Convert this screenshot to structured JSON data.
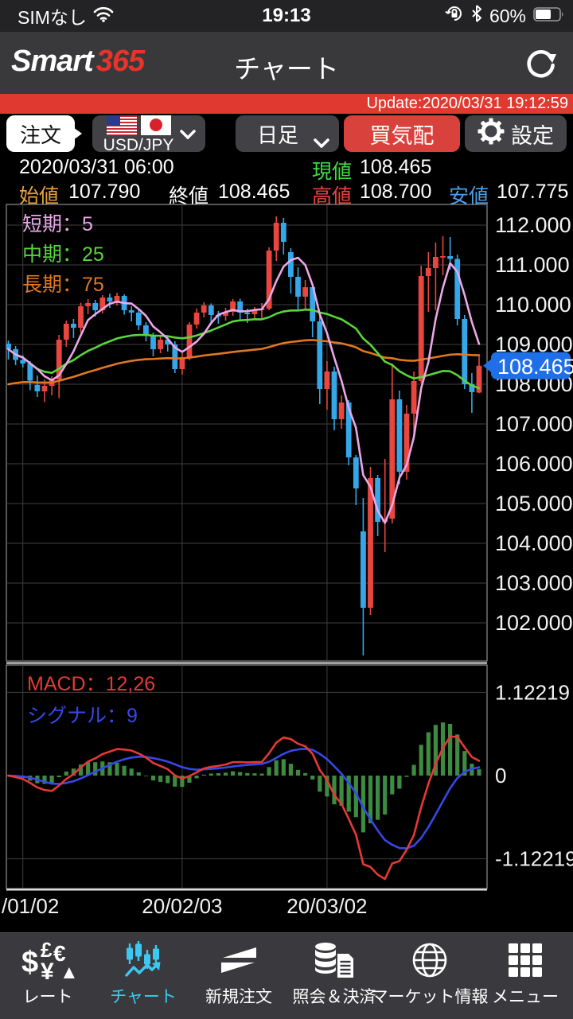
{
  "status_bar": {
    "carrier": "SIMなし",
    "time": "19:13",
    "battery_pct": "60%"
  },
  "header": {
    "logo_smart": "Smart",
    "logo_365": "365",
    "title": "チャート"
  },
  "update_bar": {
    "text": "Update:2020/03/31 19:12:59"
  },
  "toolbar": {
    "order_label": "注文",
    "pair_label": "USD/JPY",
    "timeframe_label": "日足",
    "bid_label": "買気配",
    "settings_label": "設定"
  },
  "info": {
    "datetime": "2020/03/31 06:00",
    "current_label": "現値",
    "current": "108.465",
    "open_label": "始値",
    "open": "107.790",
    "close_label": "終値",
    "close": "108.465",
    "high_label": "高値",
    "high": "108.700",
    "low_label": "安値",
    "low": "107.775"
  },
  "legend": {
    "short": "短期：5",
    "mid": "中期：25",
    "long": "長期：75"
  },
  "macd_legend": {
    "macd": "MACD：12,26",
    "signal": "シグナル：9"
  },
  "colors": {
    "accent_red": "#e03a30",
    "candle_up": "#e8463e",
    "candle_down": "#35a7e8",
    "ma_short": "#eba7e8",
    "ma_mid": "#5ad53a",
    "ma_long": "#e07820",
    "macd_line": "#e53935",
    "signal_line": "#3648e8",
    "hist_green": "#3d8b40",
    "price_tag_bg": "#1f6fe8",
    "grid": "#3f3f3f",
    "nav_active": "#3cc8f0",
    "current_green": "#3ddc45",
    "open_orange": "#e8a23c",
    "high_red": "#e8453c",
    "low_blue": "#4aa0e8"
  },
  "chart_data": {
    "type": "candlestick+macd",
    "title": "USD/JPY 日足 (daily candles with MA 5/25/75 and MACD 12,26,9)",
    "y_ticks": [
      112,
      111,
      110,
      109,
      108,
      107,
      106,
      105,
      104,
      103,
      102
    ],
    "y_tick_labels": [
      "112.000",
      "111.000",
      "110.000",
      "109.000",
      "108.000",
      "107.000",
      "106.000",
      "105.000",
      "104.000",
      "103.000",
      "102.000"
    ],
    "current_price": 108.465,
    "current_price_label": "108.465",
    "x_labels": [
      {
        "text": "/01/02",
        "index": 2,
        "anchor": "start"
      },
      {
        "text": "20/02/03",
        "index": 24,
        "anchor": "middle"
      },
      {
        "text": "20/03/02",
        "index": 44,
        "anchor": "middle"
      }
    ],
    "ma_periods": {
      "short": 5,
      "mid": 25,
      "long": 75
    },
    "macd_params": {
      "fast": 12,
      "slow": 26,
      "signal": 9
    },
    "macd_axis_labels": {
      "top": "1.12219",
      "zero": "0",
      "bottom": "-1.12219",
      "top_value": 1.12219,
      "bottom_value": -1.12219
    },
    "candles_ohlc": [
      [
        109.02,
        109.1,
        108.62,
        108.88
      ],
      [
        108.88,
        108.96,
        108.48,
        108.61
      ],
      [
        108.61,
        108.73,
        108.42,
        108.52
      ],
      [
        108.52,
        108.58,
        107.85,
        108.09
      ],
      [
        107.98,
        108.22,
        107.68,
        107.82
      ],
      [
        107.82,
        108.12,
        107.55,
        107.96
      ],
      [
        107.96,
        108.2,
        107.72,
        108.12
      ],
      [
        108.12,
        109.24,
        107.65,
        109.12
      ],
      [
        109.12,
        109.6,
        108.94,
        109.52
      ],
      [
        109.52,
        109.64,
        109.16,
        109.42
      ],
      [
        109.42,
        110.05,
        109.3,
        109.96
      ],
      [
        109.96,
        110.14,
        109.76,
        110.04
      ],
      [
        110.04,
        110.12,
        109.7,
        109.86
      ],
      [
        109.86,
        110.24,
        109.78,
        110.18
      ],
      [
        110.18,
        110.28,
        109.92,
        110.08
      ],
      [
        110.08,
        110.3,
        109.98,
        110.22
      ],
      [
        110.22,
        110.26,
        109.75,
        109.86
      ],
      [
        109.86,
        109.96,
        109.58,
        109.8
      ],
      [
        109.8,
        109.88,
        109.36,
        109.48
      ],
      [
        109.48,
        109.56,
        109.08,
        109.24
      ],
      [
        109.24,
        109.3,
        108.7,
        108.88
      ],
      [
        108.88,
        109.22,
        108.78,
        109.12
      ],
      [
        109.12,
        109.2,
        108.82,
        109.0
      ],
      [
        109.0,
        109.08,
        108.28,
        108.38
      ],
      [
        108.38,
        108.78,
        108.24,
        108.68
      ],
      [
        108.68,
        109.56,
        108.6,
        109.5
      ],
      [
        109.5,
        109.9,
        109.4,
        109.8
      ],
      [
        109.8,
        110.06,
        109.68,
        109.98
      ],
      [
        109.98,
        110.03,
        109.53,
        109.74
      ],
      [
        109.74,
        109.84,
        109.52,
        109.72
      ],
      [
        109.72,
        109.92,
        109.6,
        109.82
      ],
      [
        109.82,
        110.14,
        109.72,
        110.08
      ],
      [
        110.08,
        110.15,
        109.6,
        109.8
      ],
      [
        109.8,
        109.9,
        109.54,
        109.76
      ],
      [
        109.76,
        109.94,
        109.64,
        109.88
      ],
      [
        109.88,
        110.04,
        109.62,
        109.9
      ],
      [
        109.9,
        111.44,
        109.86,
        111.36
      ],
      [
        111.36,
        112.22,
        111.1,
        112.06
      ],
      [
        112.06,
        112.18,
        111.26,
        111.58
      ],
      [
        111.32,
        111.42,
        110.28,
        110.7
      ],
      [
        110.7,
        110.94,
        109.88,
        110.2
      ],
      [
        110.2,
        110.62,
        109.88,
        110.44
      ],
      [
        110.44,
        110.5,
        109.18,
        109.58
      ],
      [
        109.58,
        109.74,
        107.5,
        107.88
      ],
      [
        107.88,
        108.58,
        107.36,
        108.32
      ],
      [
        108.32,
        108.44,
        106.84,
        107.12
      ],
      [
        107.12,
        107.72,
        106.88,
        107.54
      ],
      [
        107.54,
        107.6,
        105.96,
        106.16
      ],
      [
        106.16,
        106.22,
        104.96,
        105.38
      ],
      [
        104.3,
        105.14,
        101.18,
        102.38
      ],
      [
        102.38,
        105.92,
        102.2,
        105.64
      ],
      [
        105.64,
        105.72,
        104.18,
        104.54
      ],
      [
        104.54,
        106.12,
        103.78,
        104.62
      ],
      [
        104.62,
        108.52,
        104.5,
        107.62
      ],
      [
        107.62,
        107.84,
        105.48,
        105.8
      ],
      [
        105.8,
        107.48,
        105.6,
        107.26
      ],
      [
        107.26,
        108.32,
        106.78,
        108.08
      ],
      [
        108.08,
        110.98,
        108.02,
        110.72
      ],
      [
        110.72,
        111.32,
        109.82,
        110.92
      ],
      [
        110.92,
        111.56,
        109.86,
        111.2
      ],
      [
        111.2,
        111.72,
        110.74,
        111.22
      ],
      [
        111.22,
        111.7,
        110.88,
        111.15
      ],
      [
        111.15,
        111.26,
        109.48,
        109.64
      ],
      [
        109.64,
        109.74,
        107.88,
        108.0
      ],
      [
        108.0,
        108.28,
        107.28,
        107.8
      ],
      [
        107.79,
        108.7,
        107.775,
        108.465
      ]
    ]
  },
  "nav": {
    "items": [
      {
        "label": "レート",
        "active": false
      },
      {
        "label": "チャート",
        "active": true
      },
      {
        "label": "新規注文",
        "active": false
      },
      {
        "label": "照会＆決済",
        "active": false
      },
      {
        "label": "マーケット情報",
        "active": false
      },
      {
        "label": "メニュー",
        "active": false
      }
    ]
  }
}
